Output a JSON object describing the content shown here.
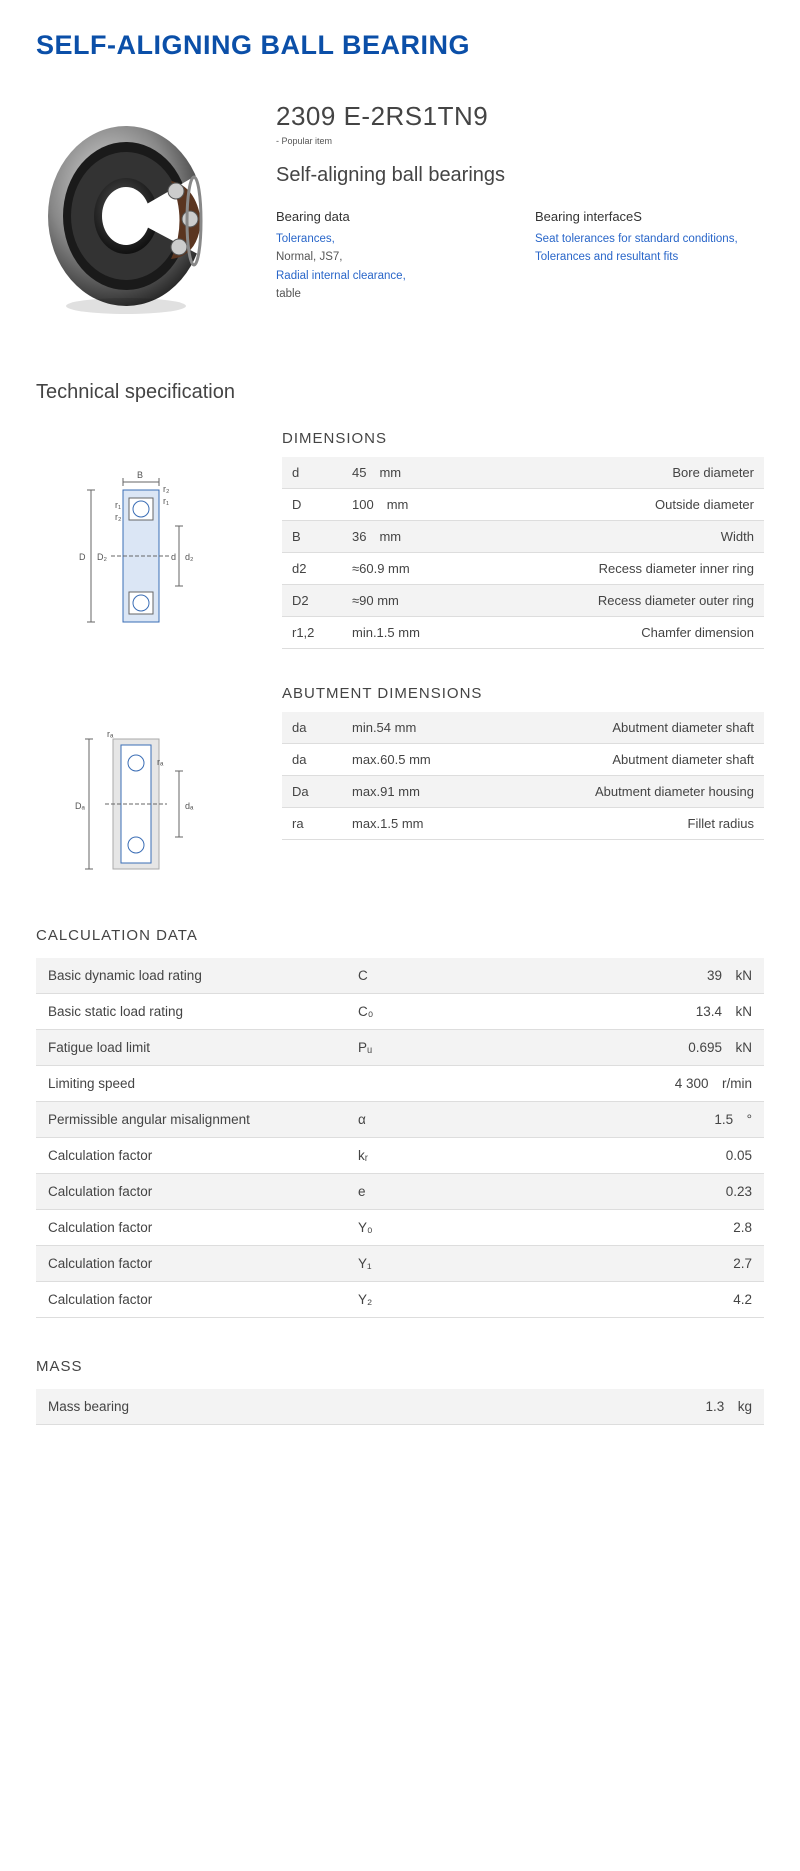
{
  "main_title": "SELF-ALIGNING BALL BEARING",
  "model": "2309 E-2RS1TN9",
  "popular": "- Popular item",
  "subtitle": "Self-aligning ball bearings",
  "links": {
    "col1": {
      "title": "Bearing data",
      "l1": "Tolerances,",
      "l2": "Normal, JS7,",
      "l3": "Radial internal clearance,",
      "l4": "table"
    },
    "col2": {
      "title": "Bearing interfaceS",
      "l1": "Seat tolerances for standard conditions,",
      "l2": "Tolerances and resultant fits"
    }
  },
  "tech_title": "Technical specification",
  "dimensions": {
    "heading": "DIMENSIONS",
    "rows": [
      {
        "sym": "d",
        "val": "45 mm",
        "desc": "Bore diameter"
      },
      {
        "sym": "D",
        "val": "100 mm",
        "desc": "Outside diameter"
      },
      {
        "sym": "B",
        "val": "36 mm",
        "desc": "Width"
      },
      {
        "sym": "d2",
        "val": "≈60.9 mm",
        "desc": "Recess diameter inner ring"
      },
      {
        "sym": "D2",
        "val": "≈90 mm",
        "desc": "Recess diameter outer ring"
      },
      {
        "sym": "r1,2",
        "val": "min.1.5 mm",
        "desc": "Chamfer dimension"
      }
    ]
  },
  "abutment": {
    "heading": "ABUTMENT DIMENSIONS",
    "rows": [
      {
        "sym": "da",
        "val": "min.54 mm",
        "desc": "Abutment diameter shaft"
      },
      {
        "sym": "da",
        "val": "max.60.5 mm",
        "desc": "Abutment diameter shaft"
      },
      {
        "sym": "Da",
        "val": "max.91 mm",
        "desc": "Abutment diameter housing"
      },
      {
        "sym": "ra",
        "val": "max.1.5 mm",
        "desc": "Fillet radius"
      }
    ]
  },
  "calc": {
    "heading": "CALCULATION DATA",
    "rows": [
      {
        "name": "Basic dynamic load rating",
        "sym": "C",
        "val": "39 kN"
      },
      {
        "name": "Basic static load rating",
        "sym": "C₀",
        "val": "13.4 kN"
      },
      {
        "name": "Fatigue load limit",
        "sym": "Pᵤ",
        "val": "0.695 kN"
      },
      {
        "name": "Limiting speed",
        "sym": "",
        "val": "4 300 r/min"
      },
      {
        "name": "Permissible angular misalignment",
        "sym": "α",
        "val": "1.5 °"
      },
      {
        "name": "Calculation factor",
        "sym": "kᵣ",
        "val": "0.05"
      },
      {
        "name": "Calculation factor",
        "sym": "e",
        "val": "0.23"
      },
      {
        "name": "Calculation factor",
        "sym": "Y₀",
        "val": "2.8"
      },
      {
        "name": "Calculation factor",
        "sym": "Y₁",
        "val": "2.7"
      },
      {
        "name": "Calculation factor",
        "sym": "Y₂",
        "val": "4.2"
      }
    ]
  },
  "mass": {
    "heading": "MASS",
    "rows": [
      {
        "name": "Mass bearing",
        "sym": "",
        "val": "1.3 kg"
      }
    ]
  },
  "colors": {
    "brand": "#0b4fa8",
    "link": "#2966c9",
    "text": "#444",
    "row_alt": "#f3f3f3"
  }
}
